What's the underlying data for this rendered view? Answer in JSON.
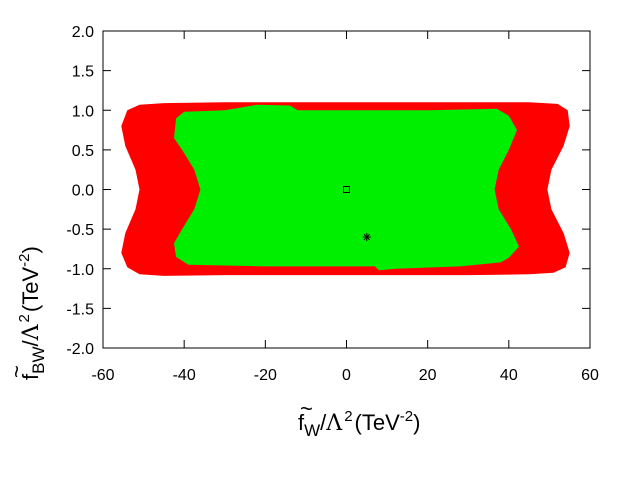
{
  "chart_data": {
    "type": "area",
    "title": "",
    "xlabel": {
      "base": "f",
      "tilde": "~",
      "sub": "W",
      "slash": "/",
      "lambda": "Λ",
      "sup2": "2",
      "units_open": "(TeV",
      "units_sup": "-2",
      "units_close": ")"
    },
    "ylabel": {
      "base": "f",
      "tilde": "~",
      "sub": "BW",
      "slash": "/",
      "lambda": "Λ",
      "sup2": "2",
      "units_open": "(TeV",
      "units_sup": "-2",
      "units_close": ")"
    },
    "xlim": [
      -60,
      60
    ],
    "ylim": [
      -2.0,
      2.0
    ],
    "xticks": [
      -60,
      -40,
      -20,
      0,
      20,
      40,
      60
    ],
    "xtick_labels": [
      "-60",
      "-40",
      "-20",
      "0",
      "20",
      "40",
      "60"
    ],
    "yticks": [
      -2.0,
      -1.5,
      -1.0,
      -0.5,
      0.0,
      0.5,
      1.0,
      1.5,
      2.0
    ],
    "ytick_labels": [
      "-2.0",
      "-1.5",
      "-1.0",
      "-0.5",
      "0.0",
      "0.5",
      "1.0",
      "1.5",
      "2.0"
    ],
    "grid": false,
    "legend": "none",
    "series": [
      {
        "color": "#ff0000",
        "points": [
          [
            -54,
            1.0
          ],
          [
            -51,
            1.07
          ],
          [
            -45,
            1.09
          ],
          [
            -30,
            1.1
          ],
          [
            -10,
            1.1
          ],
          [
            10,
            1.1
          ],
          [
            30,
            1.1
          ],
          [
            45,
            1.1
          ],
          [
            52,
            1.08
          ],
          [
            54.5,
            1.0
          ],
          [
            55,
            0.8
          ],
          [
            53.5,
            0.55
          ],
          [
            50.5,
            0.25
          ],
          [
            49.5,
            0.0
          ],
          [
            50.5,
            -0.25
          ],
          [
            53.5,
            -0.55
          ],
          [
            55,
            -0.8
          ],
          [
            54,
            -0.98
          ],
          [
            51,
            -1.05
          ],
          [
            45,
            -1.07
          ],
          [
            30,
            -1.08
          ],
          [
            10,
            -1.08
          ],
          [
            -10,
            -1.08
          ],
          [
            -30,
            -1.08
          ],
          [
            -45,
            -1.09
          ],
          [
            -51,
            -1.07
          ],
          [
            -54,
            -0.98
          ],
          [
            -55.5,
            -0.8
          ],
          [
            -54.5,
            -0.55
          ],
          [
            -52,
            -0.25
          ],
          [
            -51,
            0.0
          ],
          [
            -52,
            0.25
          ],
          [
            -54.5,
            0.55
          ],
          [
            -55.5,
            0.8
          ]
        ]
      },
      {
        "color": "#00ee00",
        "points": [
          [
            -42,
            0.9
          ],
          [
            -40,
            0.98
          ],
          [
            -30,
            1.0
          ],
          [
            -22,
            1.07
          ],
          [
            -14,
            1.06
          ],
          [
            -12,
            1.0
          ],
          [
            0,
            1.0
          ],
          [
            20,
            1.0
          ],
          [
            37,
            1.02
          ],
          [
            40,
            0.93
          ],
          [
            42,
            0.75
          ],
          [
            40,
            0.5
          ],
          [
            37.5,
            0.25
          ],
          [
            36.5,
            0.0
          ],
          [
            37.5,
            -0.25
          ],
          [
            40.5,
            -0.5
          ],
          [
            42.5,
            -0.72
          ],
          [
            40,
            -0.86
          ],
          [
            38,
            -0.92
          ],
          [
            28,
            -0.97
          ],
          [
            12,
            -1.0
          ],
          [
            8,
            -1.02
          ],
          [
            7,
            -0.97
          ],
          [
            0,
            -0.97
          ],
          [
            -20,
            -0.97
          ],
          [
            -39,
            -0.95
          ],
          [
            -42,
            -0.85
          ],
          [
            -42.5,
            -0.68
          ],
          [
            -40.5,
            -0.5
          ],
          [
            -37.5,
            -0.25
          ],
          [
            -36,
            0.0
          ],
          [
            -37.5,
            0.25
          ],
          [
            -40.5,
            0.5
          ],
          [
            -42.5,
            0.65
          ]
        ]
      }
    ],
    "markers": [
      {
        "shape": "square",
        "x": 0,
        "y": 0.0
      },
      {
        "shape": "asterisk",
        "x": 5,
        "y": -0.6
      }
    ]
  }
}
